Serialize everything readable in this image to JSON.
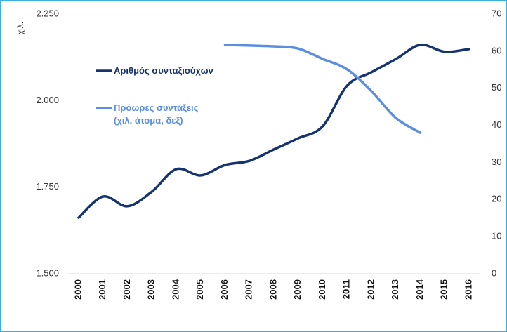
{
  "chart_data": {
    "type": "line",
    "y_label": "χιλ.",
    "categories": [
      "2000",
      "2001",
      "2002",
      "2003",
      "2004",
      "2005",
      "2006",
      "2007",
      "2008",
      "2009",
      "2010",
      "2011",
      "2012",
      "2013",
      "2014",
      "2015",
      "2016"
    ],
    "series": [
      {
        "name": "Αριθμός συνταξιούχων",
        "color": "#15336e",
        "values": [
          1662,
          1723,
          1695,
          1737,
          1802,
          1784,
          1814,
          1826,
          1859,
          1891,
          1926,
          2043,
          2082,
          2120,
          2161,
          2141,
          2149
        ]
      },
      {
        "name": "Πρόωρες συντάξεις\n(χιλ. άτομα, δεξ)",
        "color": "#5b8ee0",
        "axis": "y2",
        "values": [
          null,
          null,
          null,
          null,
          null,
          null,
          61.7,
          61.5,
          61.3,
          60.7,
          57.9,
          55.1,
          49.2,
          42.0,
          38.0,
          null,
          null
        ]
      }
    ],
    "ylim": [
      1500,
      2250
    ],
    "yticks": [
      {
        "value": 1500,
        "label": "1.500"
      },
      {
        "value": 1750,
        "label": "1.750"
      },
      {
        "value": 2000,
        "label": "2.000"
      },
      {
        "value": 2250,
        "label": "2.250"
      }
    ],
    "y2lim": [
      0,
      70
    ],
    "y2ticks": [
      0,
      10,
      20,
      30,
      40,
      50,
      60,
      70
    ],
    "grid": false,
    "legend": "top-left"
  }
}
